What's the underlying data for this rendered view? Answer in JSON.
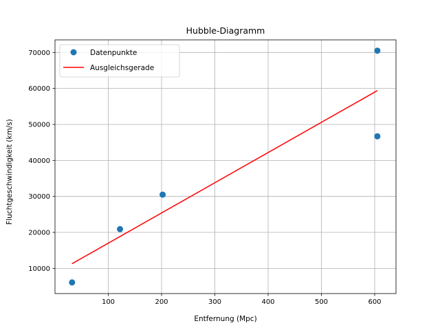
{
  "chart_data": {
    "type": "scatter",
    "title": "Hubble-Diagramm",
    "xlabel": "Entfernung (Mpc)",
    "ylabel": "Fluchtgeschwindigkeit (km/s)",
    "xlim": [
      0,
      640
    ],
    "ylim": [
      3000,
      73500
    ],
    "xticks": [
      100,
      200,
      300,
      400,
      500,
      600
    ],
    "yticks": [
      10000,
      20000,
      30000,
      40000,
      50000,
      60000,
      70000
    ],
    "grid": true,
    "legend_position": "top-left",
    "series": [
      {
        "name": "Datenpunkte",
        "type": "scatter",
        "color": "#1f77b4",
        "points": [
          [
            32,
            6100
          ],
          [
            122,
            20900
          ],
          [
            202,
            30500
          ],
          [
            605,
            46700
          ],
          [
            605,
            70500
          ]
        ]
      },
      {
        "name": "Ausgleichsgerade",
        "type": "line",
        "color": "#ff0000",
        "points": [
          [
            32,
            11300
          ],
          [
            605,
            59400
          ]
        ]
      }
    ]
  }
}
